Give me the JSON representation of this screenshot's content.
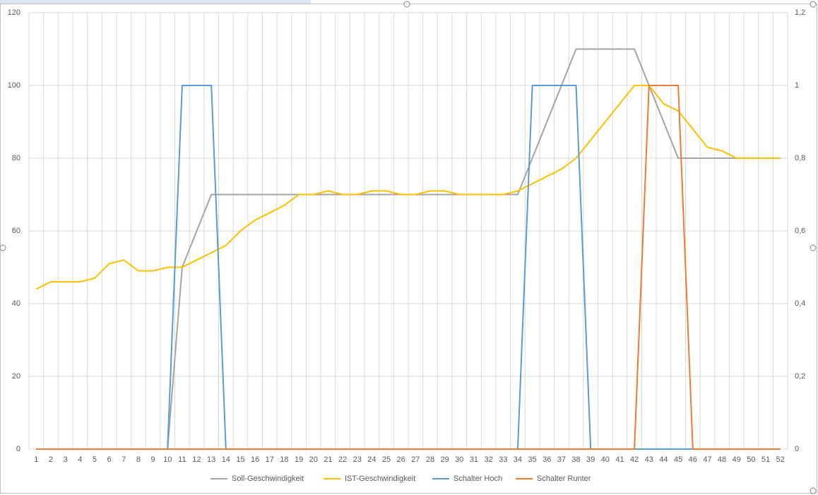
{
  "chart_data": {
    "type": "line",
    "categories": [
      1,
      2,
      3,
      4,
      5,
      6,
      7,
      8,
      9,
      10,
      11,
      12,
      13,
      14,
      15,
      16,
      17,
      18,
      19,
      20,
      21,
      22,
      23,
      24,
      25,
      26,
      27,
      28,
      29,
      30,
      31,
      32,
      33,
      34,
      35,
      36,
      37,
      38,
      39,
      40,
      41,
      42,
      43,
      44,
      45,
      46,
      47,
      48,
      49,
      50,
      51,
      52
    ],
    "ylim": [
      0,
      120
    ],
    "yticks": [
      0,
      20,
      40,
      60,
      80,
      100,
      120
    ],
    "y2lim": [
      0,
      1.2
    ],
    "y2ticks": [
      0,
      {
        "value": 0.2,
        "label": "0,2"
      },
      {
        "value": 0.4,
        "label": "0,4"
      },
      {
        "value": 0.6,
        "label": "0,6"
      },
      {
        "value": 0.8,
        "label": "0,8"
      },
      1,
      {
        "value": 1.2,
        "label": "1,2"
      }
    ],
    "grid": true,
    "legend": "bottom",
    "series": [
      {
        "name": "Soll-Geschwindigkeit",
        "color": "#a5a5a5",
        "values": [
          0,
          0,
          0,
          0,
          0,
          0,
          0,
          0,
          0,
          0,
          50,
          60,
          70,
          70,
          70,
          70,
          70,
          70,
          70,
          70,
          70,
          70,
          70,
          70,
          70,
          70,
          70,
          70,
          70,
          70,
          70,
          70,
          70,
          70,
          80,
          90,
          100,
          110,
          110,
          110,
          110,
          110,
          100,
          90,
          80,
          80,
          80,
          80,
          80,
          80,
          80,
          80
        ]
      },
      {
        "name": "IST-Geschwindigkeit",
        "color": "#ffc000",
        "values": [
          44,
          46,
          46,
          46,
          47,
          51,
          52,
          49,
          49,
          50,
          50,
          52,
          54,
          56,
          60,
          63,
          65,
          67,
          70,
          70,
          71,
          70,
          70,
          71,
          71,
          70,
          70,
          71,
          71,
          70,
          70,
          70,
          70,
          71,
          73,
          75,
          77,
          80,
          85,
          90,
          95,
          100,
          100,
          95,
          93,
          88,
          83,
          82,
          80,
          80,
          80,
          80
        ]
      },
      {
        "name": "Schalter Hoch",
        "color": "#5b9bd5",
        "axis": "y2",
        "values": [
          0,
          0,
          0,
          0,
          0,
          0,
          0,
          0,
          0,
          0,
          1,
          1,
          1,
          0,
          0,
          0,
          0,
          0,
          0,
          0,
          0,
          0,
          0,
          0,
          0,
          0,
          0,
          0,
          0,
          0,
          0,
          0,
          0,
          0,
          1,
          1,
          1,
          1,
          0,
          0,
          0,
          0,
          0,
          0,
          0,
          0,
          0,
          0,
          0,
          0,
          0,
          0
        ]
      },
      {
        "name": "Schalter Runter",
        "color": "#ed7d31",
        "axis": "y2",
        "values": [
          0,
          0,
          0,
          0,
          0,
          0,
          0,
          0,
          0,
          0,
          0,
          0,
          0,
          0,
          0,
          0,
          0,
          0,
          0,
          0,
          0,
          0,
          0,
          0,
          0,
          0,
          0,
          0,
          0,
          0,
          0,
          0,
          0,
          0,
          0,
          0,
          0,
          0,
          0,
          0,
          0,
          0,
          1,
          1,
          1,
          0,
          0,
          0,
          0,
          0,
          0,
          0
        ]
      }
    ]
  }
}
